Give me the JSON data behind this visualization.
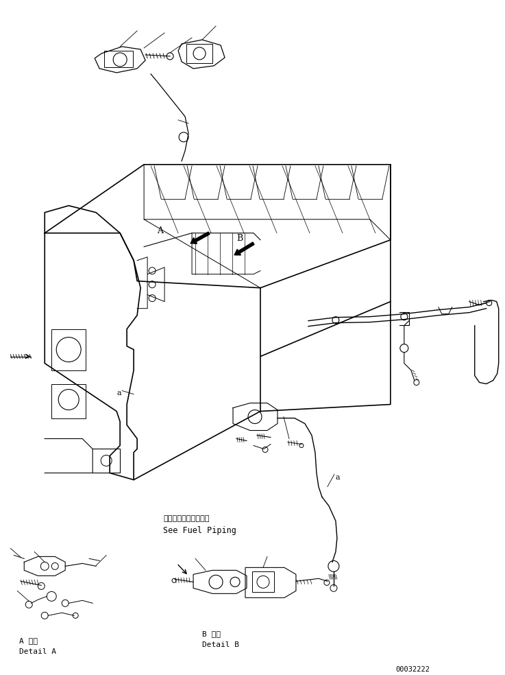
{
  "figsize": [
    7.37,
    9.84
  ],
  "dpi": 100,
  "bg_color": "#ffffff",
  "line_color": "#000000",
  "line_width": 0.8,
  "text_color": "#000000",
  "part_number": "00032222",
  "label_A_ja": "A 詳細",
  "label_A_en": "Detail A",
  "label_B_ja": "B 詳細",
  "label_B_en": "Detail B",
  "note_ja": "フェルバイピング参照",
  "note_en": "See Fuel Piping",
  "label_a1": "a",
  "label_a2": "a",
  "label_A": "A",
  "label_B": "B"
}
